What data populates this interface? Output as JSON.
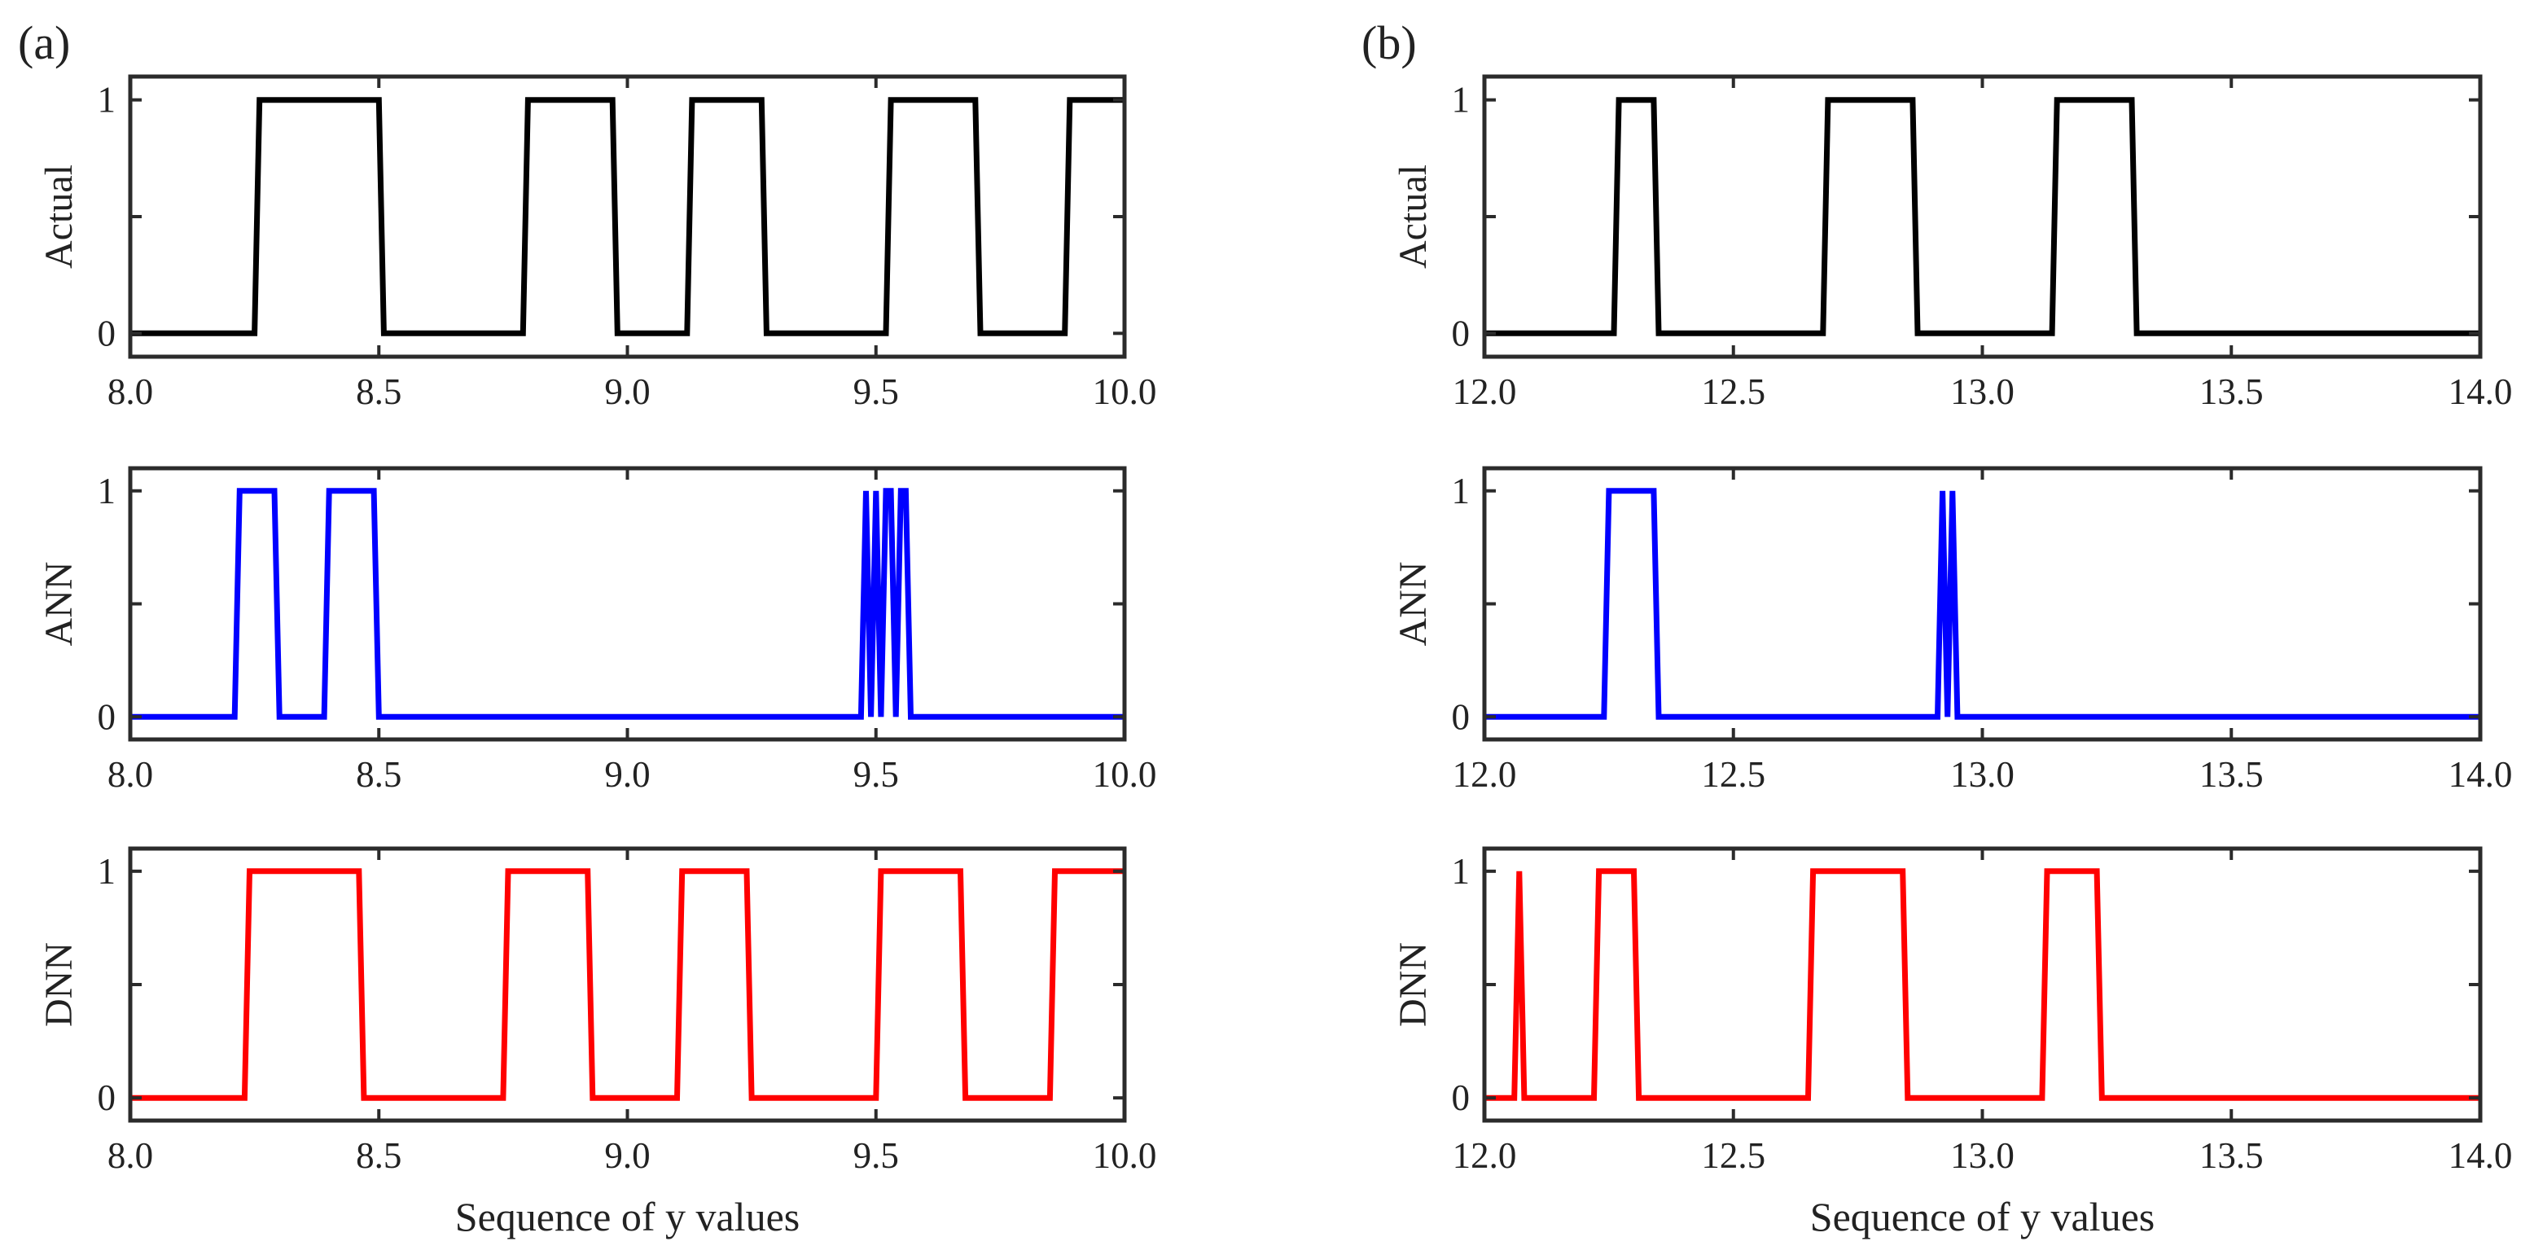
{
  "panel_labels": [
    "(a)",
    "(b)"
  ],
  "xlabel": "Sequence of y values",
  "chart_data": [
    {
      "panel": "(a)",
      "model": "Actual",
      "type": "line",
      "ylabel": "Actual",
      "color": "#000000",
      "xlim": [
        8.0,
        10.0
      ],
      "ylim": [
        -0.1,
        1.1
      ],
      "xticks": [
        "8.0",
        "8.5",
        "9.0",
        "9.5",
        "10.0"
      ],
      "yticks": [
        "0",
        "1"
      ],
      "xlabel": "",
      "x": [
        8.0,
        8.25,
        8.26,
        8.5,
        8.51,
        8.79,
        8.8,
        8.97,
        8.98,
        9.12,
        9.13,
        9.27,
        9.28,
        9.52,
        9.53,
        9.7,
        9.71,
        9.88,
        9.89,
        10.0
      ],
      "y": [
        0,
        0,
        1,
        1,
        0,
        0,
        1,
        1,
        0,
        0,
        1,
        1,
        0,
        0,
        1,
        1,
        0,
        0,
        1,
        1
      ]
    },
    {
      "panel": "(a)",
      "model": "ANN",
      "type": "line",
      "ylabel": "ANN",
      "color": "#0000ff",
      "xlim": [
        8.0,
        10.0
      ],
      "ylim": [
        -0.1,
        1.1
      ],
      "xticks": [
        "8.0",
        "8.5",
        "9.0",
        "9.5",
        "10.0"
      ],
      "yticks": [
        "0",
        "1"
      ],
      "xlabel": "",
      "x": [
        8.0,
        8.21,
        8.22,
        8.29,
        8.3,
        8.39,
        8.4,
        8.49,
        8.5,
        9.47,
        9.48,
        9.49,
        9.5,
        9.51,
        9.52,
        9.53,
        9.54,
        9.55,
        9.56,
        9.57,
        10.0
      ],
      "y": [
        0,
        0,
        1,
        1,
        0,
        0,
        1,
        1,
        0,
        0,
        1,
        0,
        1,
        0,
        1,
        1,
        0,
        1,
        1,
        0,
        0
      ]
    },
    {
      "panel": "(a)",
      "model": "DNN",
      "type": "line",
      "ylabel": "DNN",
      "color": "#ff0000",
      "xlim": [
        8.0,
        10.0
      ],
      "ylim": [
        -0.1,
        1.1
      ],
      "xticks": [
        "8.0",
        "8.5",
        "9.0",
        "9.5",
        "10.0"
      ],
      "yticks": [
        "0",
        "1"
      ],
      "xlabel": "Sequence of y values",
      "x": [
        8.0,
        8.23,
        8.24,
        8.46,
        8.47,
        8.75,
        8.76,
        8.92,
        8.93,
        9.1,
        9.11,
        9.24,
        9.25,
        9.5,
        9.51,
        9.67,
        9.68,
        9.85,
        9.86,
        10.0
      ],
      "y": [
        0,
        0,
        1,
        1,
        0,
        0,
        1,
        1,
        0,
        0,
        1,
        1,
        0,
        0,
        1,
        1,
        0,
        0,
        1,
        1
      ]
    },
    {
      "panel": "(b)",
      "model": "Actual",
      "type": "line",
      "ylabel": "Actual",
      "color": "#000000",
      "xlim": [
        12.0,
        14.0
      ],
      "ylim": [
        -0.1,
        1.1
      ],
      "xticks": [
        "12.0",
        "12.5",
        "13.0",
        "13.5",
        "14.0"
      ],
      "yticks": [
        "0",
        "1"
      ],
      "xlabel": "",
      "x": [
        12.0,
        12.26,
        12.27,
        12.34,
        12.35,
        12.68,
        12.69,
        12.86,
        12.87,
        13.14,
        13.15,
        13.3,
        13.31,
        14.0
      ],
      "y": [
        0,
        0,
        1,
        1,
        0,
        0,
        1,
        1,
        0,
        0,
        1,
        1,
        0,
        0
      ]
    },
    {
      "panel": "(b)",
      "model": "ANN",
      "type": "line",
      "ylabel": "ANN",
      "color": "#0000ff",
      "xlim": [
        12.0,
        14.0
      ],
      "ylim": [
        -0.1,
        1.1
      ],
      "xticks": [
        "12.0",
        "12.5",
        "13.0",
        "13.5",
        "14.0"
      ],
      "yticks": [
        "0",
        "1"
      ],
      "xlabel": "",
      "x": [
        12.0,
        12.24,
        12.25,
        12.34,
        12.35,
        12.91,
        12.92,
        12.93,
        12.94,
        12.95,
        14.0
      ],
      "y": [
        0,
        0,
        1,
        1,
        0,
        0,
        1,
        0,
        1,
        0,
        0
      ]
    },
    {
      "panel": "(b)",
      "model": "DNN",
      "type": "line",
      "ylabel": "DNN",
      "color": "#ff0000",
      "xlim": [
        12.0,
        14.0
      ],
      "ylim": [
        -0.1,
        1.1
      ],
      "xticks": [
        "12.0",
        "12.5",
        "13.0",
        "13.5",
        "14.0"
      ],
      "yticks": [
        "0",
        "1"
      ],
      "xlabel": "Sequence of y values",
      "x": [
        12.0,
        12.06,
        12.07,
        12.08,
        12.22,
        12.23,
        12.3,
        12.31,
        12.65,
        12.66,
        12.84,
        12.85,
        13.12,
        13.13,
        13.23,
        13.24,
        14.0
      ],
      "y": [
        0,
        0,
        1,
        0,
        0,
        1,
        1,
        0,
        0,
        1,
        1,
        0,
        0,
        1,
        1,
        0,
        0
      ]
    }
  ]
}
